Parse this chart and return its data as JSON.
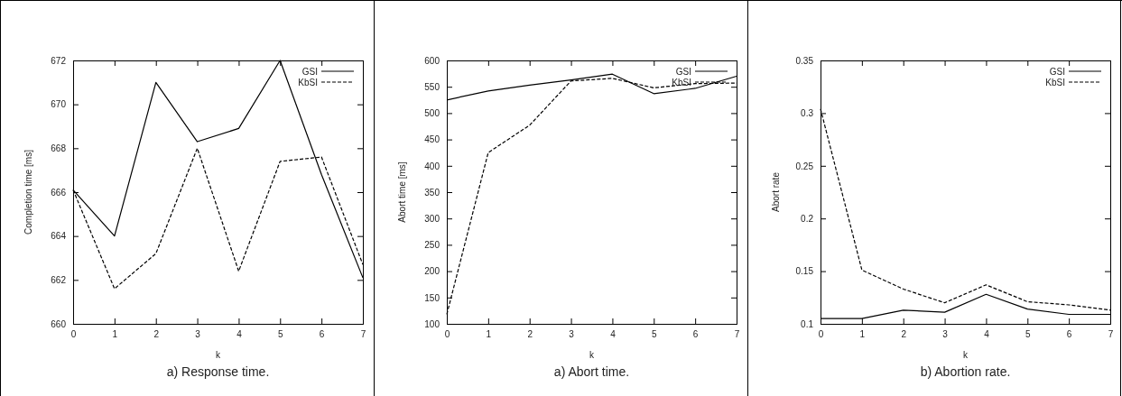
{
  "chart_data": [
    {
      "type": "line",
      "xlabel": "k",
      "ylabel": "Completion time [ms]",
      "annotations": [
        "a) Response time."
      ],
      "x": [
        0,
        1,
        2,
        3,
        4,
        5,
        6,
        7
      ],
      "xlim": [
        0,
        7
      ],
      "xticks": [
        0,
        1,
        2,
        3,
        4,
        5,
        6,
        7
      ],
      "ylim": [
        660,
        672
      ],
      "yticks": [
        660,
        662,
        664,
        666,
        668,
        670,
        672
      ],
      "grid": false,
      "legend": "top right",
      "marker": "none",
      "series": [
        {
          "name": "GSI",
          "color": "#000000",
          "line_style": "solid",
          "values": [
            666.1,
            664,
            671,
            668.3,
            668.9,
            672,
            666.8,
            662.1
          ]
        },
        {
          "name": "KbSI",
          "color": "#000000",
          "line_style": "dashed",
          "values": [
            666.1,
            661.6,
            663.2,
            668,
            662.4,
            667.4,
            667.6,
            662.7
          ]
        }
      ]
    },
    {
      "type": "line",
      "xlabel": "k",
      "ylabel": "Abort time [ms]",
      "annotations": [
        "a) Abort time."
      ],
      "x": [
        0,
        1,
        2,
        3,
        4,
        5,
        6,
        7
      ],
      "xlim": [
        0,
        7
      ],
      "xticks": [
        0,
        1,
        2,
        3,
        4,
        5,
        6,
        7
      ],
      "ylim": [
        100,
        600
      ],
      "yticks": [
        100,
        150,
        200,
        250,
        300,
        350,
        400,
        450,
        500,
        550,
        600
      ],
      "grid": false,
      "legend": "top right",
      "marker": "none",
      "series": [
        {
          "name": "GSI",
          "color": "#000000",
          "line_style": "solid",
          "values": [
            525,
            542,
            553,
            563,
            574,
            537,
            547,
            570
          ]
        },
        {
          "name": "KbSI",
          "color": "#000000",
          "line_style": "dashed",
          "values": [
            118,
            425,
            477,
            561,
            566,
            548,
            556,
            557
          ]
        }
      ]
    },
    {
      "type": "line",
      "xlabel": "k",
      "ylabel": "Abort rate",
      "annotations": [
        "b) Abortion rate."
      ],
      "x": [
        0,
        1,
        2,
        3,
        4,
        5,
        6,
        7
      ],
      "xlim": [
        0,
        7
      ],
      "xticks": [
        0,
        1,
        2,
        3,
        4,
        5,
        6,
        7
      ],
      "ylim": [
        0.1,
        0.35
      ],
      "yticks": [
        0.1,
        0.15,
        0.2,
        0.25,
        0.3,
        0.35
      ],
      "grid": false,
      "legend": "top right",
      "marker": "none",
      "series": [
        {
          "name": "GSI",
          "color": "#000000",
          "line_style": "solid",
          "values": [
            0.105,
            0.105,
            0.113,
            0.111,
            0.128,
            0.114,
            0.109,
            0.109
          ]
        },
        {
          "name": "KbSI",
          "color": "#000000",
          "line_style": "dashed",
          "values": [
            0.304,
            0.151,
            0.133,
            0.12,
            0.137,
            0.121,
            0.118,
            0.113
          ]
        }
      ]
    }
  ]
}
